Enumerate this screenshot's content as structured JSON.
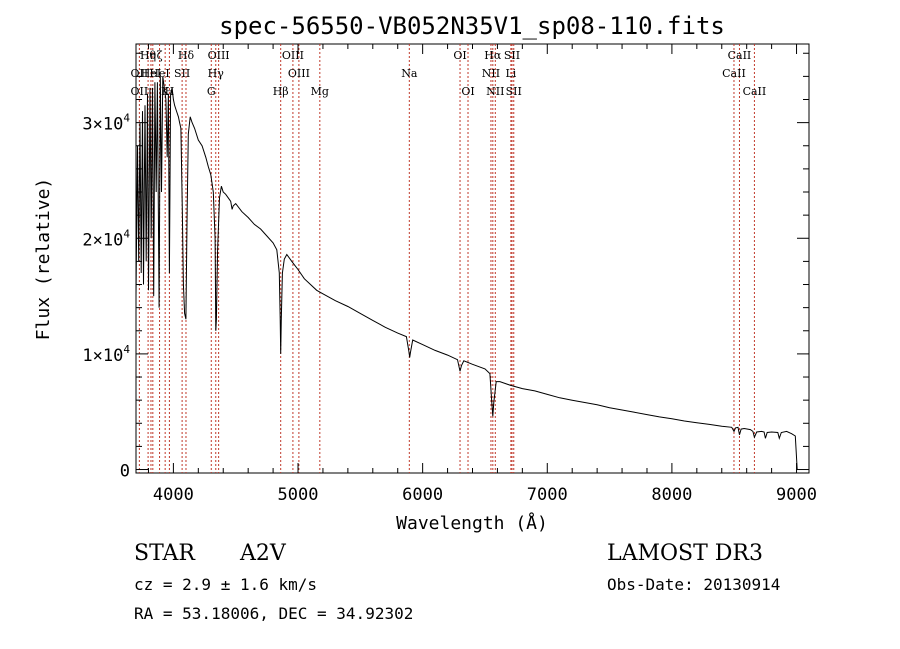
{
  "chart_data": {
    "type": "line",
    "title": "spec-56550-VB052N35V1_sp08-110.fits",
    "xlabel": "Wavelength (Å)",
    "ylabel": "Flux (relative)",
    "xlim": [
      3700,
      9100
    ],
    "ylim": [
      -300,
      36800
    ],
    "x_ticks": [
      4000,
      5000,
      6000,
      7000,
      8000,
      9000
    ],
    "x_tick_labels": [
      "4000",
      "5000",
      "6000",
      "7000",
      "8000",
      "9000"
    ],
    "y_ticks": [
      0,
      10000,
      20000,
      30000
    ],
    "y_tick_labels": [
      {
        "id": "y0",
        "mant": "0",
        "exp": ""
      },
      {
        "id": "y1",
        "mant": "1×10",
        "exp": "4"
      },
      {
        "id": "y2",
        "mant": "2×10",
        "exp": "4"
      },
      {
        "id": "y3",
        "mant": "3×10",
        "exp": "4"
      }
    ],
    "series": [
      {
        "name": "spectrum",
        "points": [
          [
            3700,
            15000
          ],
          [
            3712,
            28000
          ],
          [
            3722,
            18000
          ],
          [
            3732,
            30000
          ],
          [
            3742,
            17000
          ],
          [
            3752,
            31000
          ],
          [
            3760,
            16000
          ],
          [
            3772,
            31500
          ],
          [
            3782,
            18000
          ],
          [
            3792,
            32500
          ],
          [
            3800,
            15500
          ],
          [
            3812,
            33000
          ],
          [
            3822,
            20000
          ],
          [
            3832,
            33000
          ],
          [
            3842,
            15000
          ],
          [
            3852,
            33500
          ],
          [
            3862,
            24000
          ],
          [
            3872,
            33500
          ],
          [
            3885,
            14000
          ],
          [
            3895,
            34000
          ],
          [
            3905,
            24000
          ],
          [
            3915,
            34000
          ],
          [
            3925,
            33200
          ],
          [
            3940,
            32000
          ],
          [
            3950,
            27000
          ],
          [
            3960,
            32500
          ],
          [
            3968,
            17000
          ],
          [
            3978,
            32500
          ],
          [
            3990,
            33000
          ],
          [
            4000,
            32000
          ],
          [
            4010,
            31500
          ],
          [
            4025,
            31000
          ],
          [
            4040,
            30500
          ],
          [
            4050,
            30000
          ],
          [
            4060,
            29500
          ],
          [
            4072,
            22000
          ],
          [
            4080,
            16000
          ],
          [
            4090,
            13500
          ],
          [
            4100,
            13000
          ],
          [
            4110,
            22000
          ],
          [
            4120,
            29000
          ],
          [
            4135,
            30500
          ],
          [
            4150,
            30000
          ],
          [
            4170,
            29500
          ],
          [
            4200,
            28500
          ],
          [
            4230,
            28000
          ],
          [
            4260,
            27000
          ],
          [
            4280,
            26200
          ],
          [
            4300,
            25500
          ],
          [
            4320,
            24000
          ],
          [
            4335,
            20000
          ],
          [
            4340,
            12000
          ],
          [
            4345,
            13000
          ],
          [
            4355,
            19000
          ],
          [
            4370,
            23500
          ],
          [
            4385,
            24500
          ],
          [
            4400,
            24000
          ],
          [
            4420,
            23800
          ],
          [
            4440,
            23500
          ],
          [
            4460,
            23200
          ],
          [
            4471,
            22500
          ],
          [
            4480,
            22800
          ],
          [
            4500,
            23000
          ],
          [
            4550,
            22300
          ],
          [
            4600,
            21800
          ],
          [
            4650,
            21200
          ],
          [
            4700,
            20800
          ],
          [
            4750,
            20200
          ],
          [
            4800,
            19600
          ],
          [
            4830,
            19000
          ],
          [
            4850,
            17000
          ],
          [
            4857,
            13000
          ],
          [
            4861,
            10000
          ],
          [
            4866,
            13000
          ],
          [
            4875,
            17000
          ],
          [
            4890,
            18200
          ],
          [
            4910,
            18600
          ],
          [
            4950,
            18000
          ],
          [
            5000,
            17300
          ],
          [
            5050,
            16500
          ],
          [
            5100,
            16000
          ],
          [
            5150,
            15500
          ],
          [
            5200,
            15200
          ],
          [
            5300,
            14600
          ],
          [
            5400,
            14100
          ],
          [
            5500,
            13500
          ],
          [
            5600,
            12900
          ],
          [
            5700,
            12300
          ],
          [
            5800,
            11800
          ],
          [
            5870,
            11500
          ],
          [
            5890,
            10200
          ],
          [
            5896,
            9700
          ],
          [
            5903,
            10200
          ],
          [
            5920,
            11200
          ],
          [
            6000,
            10800
          ],
          [
            6100,
            10300
          ],
          [
            6200,
            9900
          ],
          [
            6280,
            9500
          ],
          [
            6300,
            8500
          ],
          [
            6312,
            9000
          ],
          [
            6330,
            9400
          ],
          [
            6400,
            9100
          ],
          [
            6500,
            8700
          ],
          [
            6540,
            8300
          ],
          [
            6555,
            5800
          ],
          [
            6563,
            4600
          ],
          [
            6571,
            5800
          ],
          [
            6590,
            7600
          ],
          [
            6620,
            7600
          ],
          [
            6700,
            7300
          ],
          [
            6800,
            7000
          ],
          [
            6900,
            6800
          ],
          [
            7000,
            6500
          ],
          [
            7100,
            6200
          ],
          [
            7200,
            6000
          ],
          [
            7300,
            5800
          ],
          [
            7400,
            5600
          ],
          [
            7500,
            5350
          ],
          [
            7600,
            5150
          ],
          [
            7700,
            4950
          ],
          [
            7800,
            4750
          ],
          [
            7900,
            4550
          ],
          [
            8000,
            4400
          ],
          [
            8100,
            4200
          ],
          [
            8200,
            4050
          ],
          [
            8300,
            3900
          ],
          [
            8400,
            3750
          ],
          [
            8480,
            3650
          ],
          [
            8498,
            3300
          ],
          [
            8510,
            3600
          ],
          [
            8530,
            3650
          ],
          [
            8542,
            3000
          ],
          [
            8555,
            3500
          ],
          [
            8580,
            3550
          ],
          [
            8630,
            3450
          ],
          [
            8650,
            3300
          ],
          [
            8662,
            2800
          ],
          [
            8680,
            3250
          ],
          [
            8720,
            3300
          ],
          [
            8740,
            3250
          ],
          [
            8750,
            2700
          ],
          [
            8765,
            3200
          ],
          [
            8800,
            3250
          ],
          [
            8850,
            3200
          ],
          [
            8862,
            2700
          ],
          [
            8878,
            3200
          ],
          [
            8920,
            3300
          ],
          [
            8960,
            3100
          ],
          [
            8990,
            2900
          ],
          [
            9005,
            0
          ]
        ]
      }
    ],
    "lines": [
      {
        "id": "hth",
        "x": 3797,
        "label": "Hθ",
        "row": 0
      },
      {
        "id": "hgam",
        "x": 3835,
        "label": "η",
        "row": 0
      },
      {
        "id": "hz",
        "x": 3889,
        "label": "ζ",
        "row": 0
      },
      {
        "id": "hd",
        "x": 4101,
        "label": "Hδ",
        "row": 0
      },
      {
        "id": "o3a",
        "x": 4363,
        "label": "OIII",
        "row": 0
      },
      {
        "id": "o3b",
        "x": 4959,
        "label": "OIII",
        "row": 0
      },
      {
        "id": "oi1",
        "x": 6300,
        "label": "OI",
        "row": 0
      },
      {
        "id": "ha",
        "x": 6563,
        "label": "Hα",
        "row": 0
      },
      {
        "id": "sii1",
        "x": 6717,
        "label": "SII",
        "row": 0
      },
      {
        "id": "ca1",
        "x": 8542,
        "label": "CaII",
        "row": 0
      },
      {
        "id": "o2",
        "x": 3727,
        "label": "OII",
        "row": 1
      },
      {
        "id": "he1",
        "x": 3820,
        "label": "HeI",
        "row": 1
      },
      {
        "id": "he2",
        "x": 3889,
        "label": "HeI",
        "row": 1
      },
      {
        "id": "sii0",
        "x": 4070,
        "label": "SII",
        "row": 1
      },
      {
        "id": "hgl",
        "x": 4340,
        "label": "Hγ",
        "row": 1
      },
      {
        "id": "o3c",
        "x": 5007,
        "label": "OIII",
        "row": 1
      },
      {
        "id": "na",
        "x": 5893,
        "label": "Na",
        "row": 1
      },
      {
        "id": "nii",
        "x": 6548,
        "label": "NII",
        "row": 1
      },
      {
        "id": "li",
        "x": 6708,
        "label": "Li",
        "row": 1
      },
      {
        "id": "ca2",
        "x": 8498,
        "label": "CaII",
        "row": 1
      },
      {
        "id": "o2b",
        "x": 3727,
        "label": "OII",
        "row": 2
      },
      {
        "id": "k",
        "x": 3934,
        "label": "K",
        "row": 2
      },
      {
        "id": "h",
        "x": 3968,
        "label": "H",
        "row": 2
      },
      {
        "id": "g",
        "x": 4304,
        "label": "G",
        "row": 2
      },
      {
        "id": "hb",
        "x": 4861,
        "label": "Hβ",
        "row": 2
      },
      {
        "id": "mg",
        "x": 5175,
        "label": "Mg",
        "row": 2
      },
      {
        "id": "oi2",
        "x": 6364,
        "label": "OI",
        "row": 2
      },
      {
        "id": "nii2",
        "x": 6583,
        "label": "NII",
        "row": 2
      },
      {
        "id": "sii2",
        "x": 6731,
        "label": "SII",
        "row": 2
      },
      {
        "id": "ca3",
        "x": 8662,
        "label": "CaII",
        "row": 2
      }
    ]
  },
  "info": {
    "object_class": "STAR",
    "subclass": "A2V",
    "survey": "LAMOST DR3",
    "cz": "cz = 2.9 ± 1.6 km/s",
    "obs_date": "Obs-Date: 20130914",
    "coords": "RA =  53.18006, DEC =  34.92302"
  }
}
